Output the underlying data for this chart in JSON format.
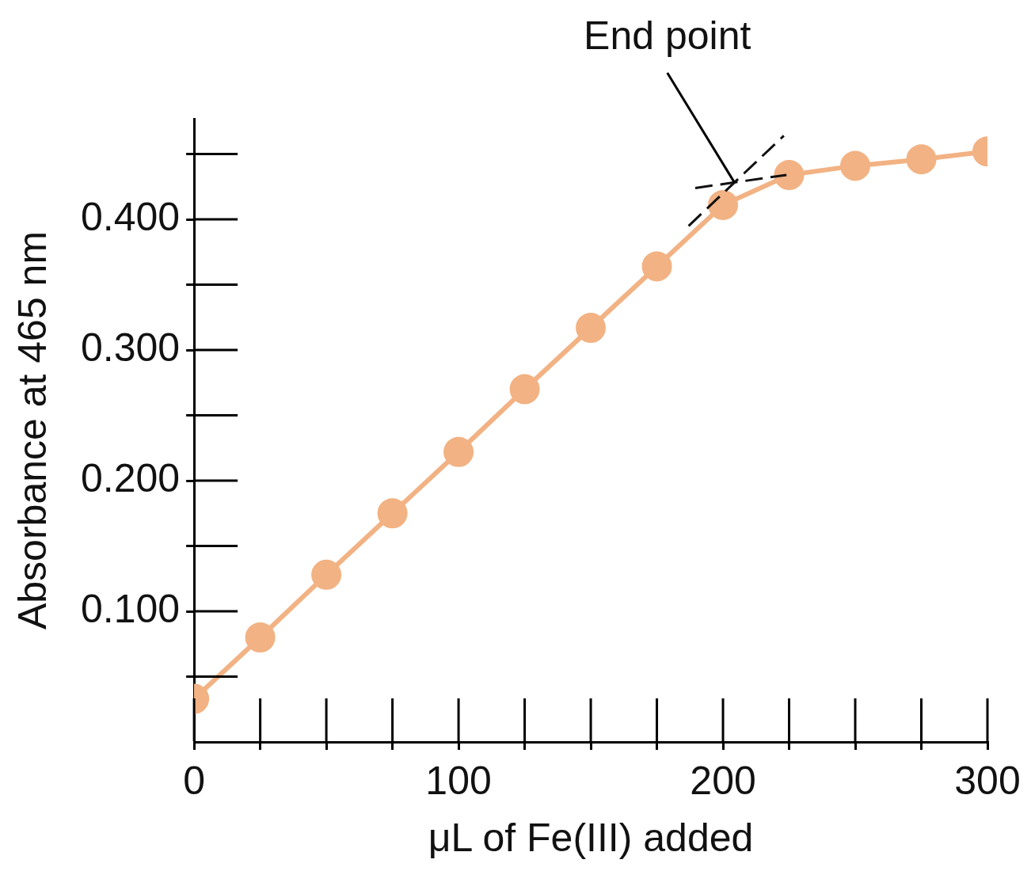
{
  "chart_data": {
    "type": "line",
    "xlabel": "μL of Fe(III) added",
    "ylabel": "Absorbance at 465 nm",
    "x": [
      0,
      25,
      50,
      75,
      100,
      125,
      150,
      175,
      200,
      225,
      250,
      275,
      300
    ],
    "series": [
      {
        "color": "#f2b283",
        "marker": "circle",
        "values": [
          0.033,
          0.08,
          0.128,
          0.175,
          0.222,
          0.27,
          0.317,
          0.364,
          0.411,
          0.434,
          0.441,
          0.446,
          0.452
        ]
      },
      {
        "type": "line",
        "color": "#111111",
        "line_style": "dashed",
        "marker": "none",
        "x": [
          187,
          223
        ],
        "values": [
          0.395,
          0.464
        ]
      },
      {
        "type": "line",
        "color": "#111111",
        "line_style": "dashed",
        "marker": "none",
        "x": [
          189.5,
          224
        ],
        "values": [
          0.424,
          0.434
        ]
      }
    ],
    "xlim": [
      0,
      300
    ],
    "ylim": [
      0,
      0.477
    ],
    "xticks": [
      0,
      {
        "value": 25,
        "label": null
      },
      {
        "value": 50,
        "label": null
      },
      {
        "value": 75,
        "label": null
      },
      100,
      {
        "value": 125,
        "label": null
      },
      {
        "value": 150,
        "label": null
      },
      {
        "value": 175,
        "label": null
      },
      200,
      {
        "value": 225,
        "label": null
      },
      {
        "value": 250,
        "label": null
      },
      {
        "value": 275,
        "label": null
      },
      300
    ],
    "yticks": [
      {
        "value": 0.05,
        "label": null
      },
      {
        "value": 0.1,
        "label": "0.100"
      },
      {
        "value": 0.15,
        "label": null
      },
      {
        "value": 0.2,
        "label": "0.200"
      },
      {
        "value": 0.25,
        "label": null
      },
      {
        "value": 0.3,
        "label": "0.300"
      },
      {
        "value": 0.35,
        "label": null
      },
      {
        "value": 0.4,
        "label": "0.400"
      },
      {
        "value": 0.45,
        "label": null
      }
    ],
    "annotations": [
      {
        "text": "End point",
        "x": 204.4,
        "y": 0.428
      }
    ],
    "grid": false,
    "legend": false
  }
}
